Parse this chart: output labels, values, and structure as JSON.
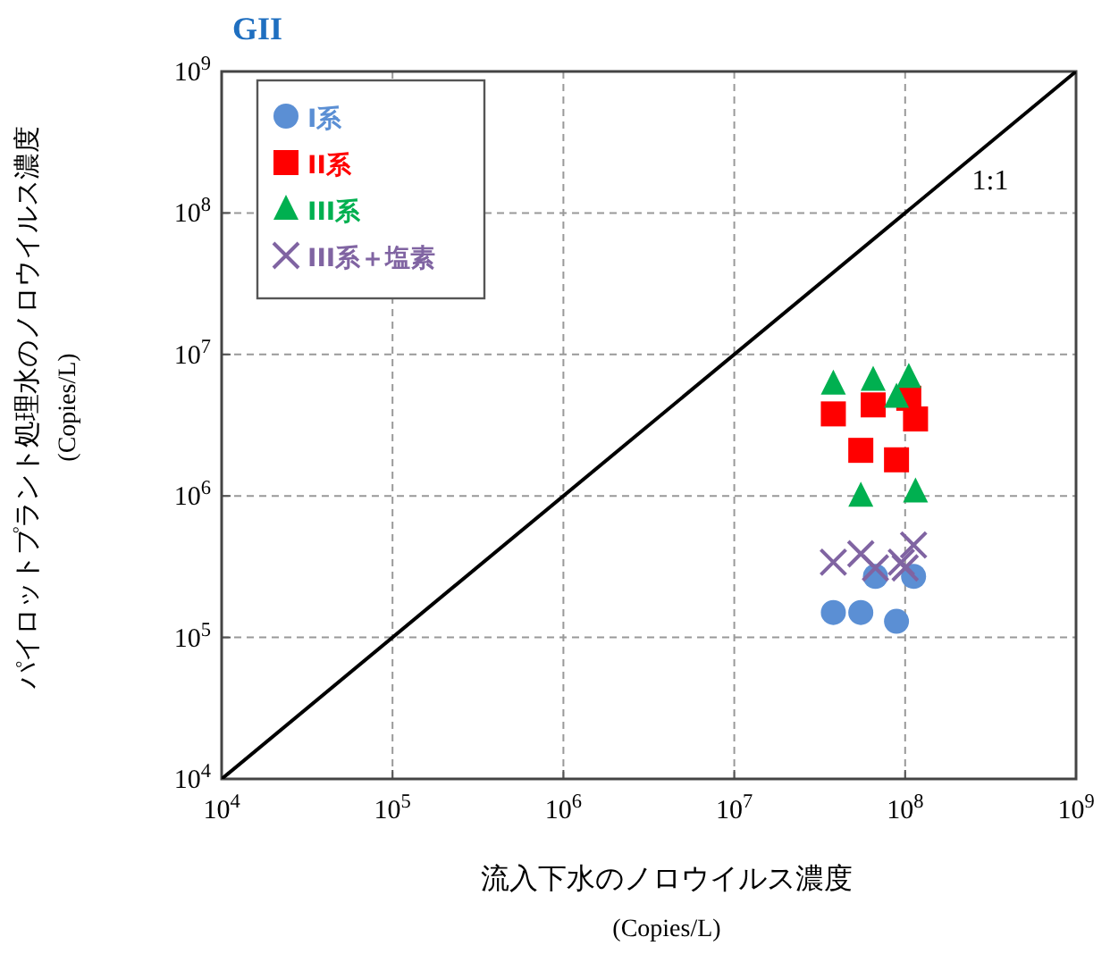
{
  "chart_data": {
    "type": "scatter",
    "title": "GII",
    "xlabel": "流入下水のノロウイルス濃度\n(Copies/L)",
    "ylabel": "パイロットプラント処理水のノロウイルス濃度\n(Copies/L)",
    "log": "xy",
    "xlim": [
      10000,
      1000000000
    ],
    "ylim": [
      10000,
      1000000000
    ],
    "xticks": [
      {
        "value": 10000,
        "label": "10$^{4}$"
      },
      {
        "value": 100000,
        "label": "10$^{5}$"
      },
      {
        "value": 1000000,
        "label": "10$^{6}$"
      },
      {
        "value": 10000000,
        "label": "10$^{7}$"
      },
      {
        "value": 100000000,
        "label": "10$^{8}$"
      },
      {
        "value": 1000000000,
        "label": "10$^{9}$"
      }
    ],
    "yticks": [
      {
        "value": 10000,
        "label": "10$^{4}$"
      },
      {
        "value": 100000,
        "label": "10$^{5}$"
      },
      {
        "value": 1000000,
        "label": "10$^{6}$"
      },
      {
        "value": 10000000,
        "label": "10$^{7}$"
      },
      {
        "value": 100000000,
        "label": "10$^{8}$"
      },
      {
        "value": 1000000000,
        "label": "10$^{9}$"
      }
    ],
    "grid": true,
    "legend": "top left",
    "series": [
      {
        "name": "I系",
        "color": "#5b8fd4",
        "marker": "circle",
        "x": [
          67000000,
          112000000,
          38000000,
          55000000,
          89000000
        ],
        "values": [
          270000,
          270000,
          150000,
          150000,
          130000
        ]
      },
      {
        "name": "II系",
        "color": "#ff0000",
        "marker": "square",
        "x": [
          38000000,
          65000000,
          105000000,
          115000000,
          55000000,
          89000000
        ],
        "values": [
          3800000,
          4400000,
          4900000,
          3500000,
          2100000,
          1800000
        ]
      },
      {
        "name": "III系",
        "color": "#00b050",
        "marker": "triangle",
        "x": [
          38000000,
          65000000,
          105000000,
          89000000,
          55000000,
          115000000
        ],
        "values": [
          6200000,
          6600000,
          6900000,
          5000000,
          1000000,
          1070000
        ]
      },
      {
        "name": "III系＋塩素",
        "color": "#8064a2",
        "marker": "cross",
        "x": [
          38000000,
          55000000,
          67000000,
          95000000,
          112000000,
          100000000
        ],
        "values": [
          340000,
          390000,
          310000,
          340000,
          450000,
          310000
        ]
      },
      {
        "type": "line",
        "color": "#000000",
        "marker": "none",
        "x": [
          10000,
          1000000000
        ],
        "values": [
          10000,
          1000000000
        ]
      }
    ],
    "annotations": [
      "1:1"
    ]
  }
}
